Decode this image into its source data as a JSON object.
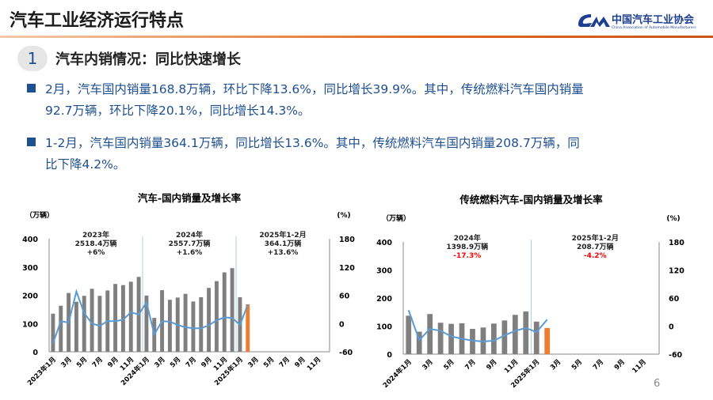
{
  "header": {
    "title": "汽车工业经济运行特点",
    "logo_cn": "中国汽车工业协会",
    "logo_en": "China Association of Automobile Manufacturers"
  },
  "section": {
    "number": "1",
    "title": "汽车内销情况：同比快速增长"
  },
  "bullets": [
    {
      "line1": "2月，汽车国内销量168.8万辆，环比下降13.6%，同比增长39.9%。其中，传统燃料汽车国内销量",
      "line2": "92.7万辆，环比下降20.1%，同比增长14.3%。"
    },
    {
      "line1": "1-2月，汽车国内销量364.1万辆，同比增长13.6%。其中，传统燃料汽车国内销量208.7万辆，同",
      "line2": "比下降4.2%。"
    }
  ],
  "colors": {
    "bar": "#7f7f7f",
    "highlight_bar": "#ed7d31",
    "line": "#5b9bd5",
    "text_blue": "#1e4f8f",
    "negative": "#ff0000"
  },
  "page_number": "6",
  "chart_data": [
    {
      "type": "bar+line",
      "title": "汽车-国内销量及增长率",
      "ylabel_left": "（万辆）",
      "ylabel_right": "(%)",
      "ylim_left": [
        0,
        400
      ],
      "yticks_left": [
        "0",
        "100",
        "200",
        "300",
        "400"
      ],
      "ylim_right": [
        -60,
        180
      ],
      "yticks_right": [
        "-60",
        "0",
        "60",
        "120",
        "180"
      ],
      "xticks": [
        "2023年1月",
        "3月",
        "5月",
        "7月",
        "9月",
        "11月",
        "2024年1月",
        "3月",
        "5月",
        "7月",
        "9月",
        "11月",
        "2025年1月",
        "3月",
        "5月",
        "7月",
        "9月",
        "11月"
      ],
      "x_slots": 36,
      "sales": [
        135,
        163,
        208,
        177,
        198,
        223,
        198,
        217,
        240,
        236,
        248,
        265,
        199,
        120,
        218,
        184,
        192,
        205,
        178,
        193,
        226,
        250,
        281,
        296,
        193,
        168
      ],
      "growth": [
        -42,
        5,
        2,
        68,
        22,
        0,
        -5,
        5,
        5,
        8,
        24,
        19,
        45,
        -23,
        5,
        4,
        -3,
        -8,
        -10,
        -10,
        -4,
        7,
        13,
        12,
        -3,
        40
      ],
      "annotations": [
        {
          "lines": [
            "2023年",
            "2518.4万辆",
            "+6%"
          ],
          "negative": false
        },
        {
          "lines": [
            "2024年",
            "2557.7万辆",
            "+1.6%"
          ],
          "negative": false
        },
        {
          "lines": [
            "2025年1-2月",
            "364.1万辆",
            "+13.6%"
          ],
          "negative": false
        }
      ],
      "dividers_after": [
        12,
        24
      ]
    },
    {
      "type": "bar+line",
      "title": "传统燃料汽车-国内销量及增长率",
      "ylabel_left": "（万辆）",
      "ylabel_right": "(%)",
      "ylim_left": [
        0,
        400
      ],
      "yticks_left": [
        "0",
        "100",
        "200",
        "300",
        "400"
      ],
      "ylim_right": [
        -60,
        180
      ],
      "yticks_right": [
        "-60",
        "0",
        "60",
        "120",
        "180"
      ],
      "xticks": [
        "2024年1月",
        "3月",
        "5月",
        "7月",
        "9月",
        "11月",
        "2025年1月",
        "3月",
        "5月",
        "7月",
        "9月",
        "11月"
      ],
      "x_slots": 24,
      "sales": [
        137,
        80,
        143,
        112,
        108,
        110,
        90,
        95,
        109,
        120,
        140,
        152,
        116,
        93
      ],
      "growth": [
        34,
        -30,
        -6,
        -10,
        -22,
        -27,
        -31,
        -33,
        -31,
        -20,
        -10,
        -4,
        -13,
        14
      ],
      "annotations": [
        {
          "lines": [
            "2024年",
            "1398.9万辆",
            "-17.3%"
          ],
          "negative": true
        },
        {
          "lines": [
            "2025年1-2月",
            "208.7万辆",
            "-4.2%"
          ],
          "negative": true
        }
      ],
      "dividers_after": [
        12
      ]
    }
  ]
}
